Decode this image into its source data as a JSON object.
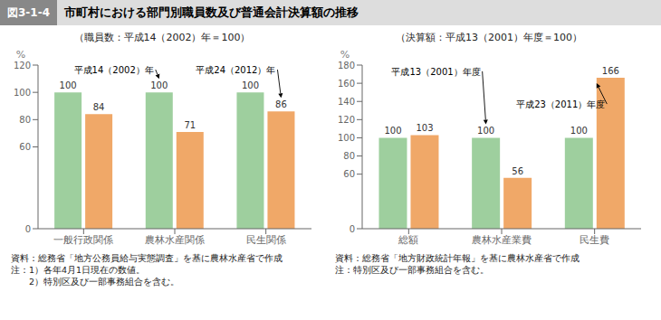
{
  "title_box": "図3-1-4",
  "title": "市町村における部門別職員数及び普通会計決算額の推移",
  "chart_data": [
    {
      "type": "bar",
      "subtitle": "（職員数：平成14（2002）年＝100）",
      "categories": [
        "一般行政関係",
        "農林水産関係",
        "民生関係"
      ],
      "series": [
        {
          "color": "#9ecf9e",
          "values": [
            100,
            100,
            100
          ],
          "annotation": {
            "text": "平成14（2002）年",
            "category": "農林水産関係"
          }
        },
        {
          "color": "#f0a868",
          "values": [
            84,
            71,
            86
          ],
          "annotation": {
            "text": "平成24（2012）年",
            "category": "民生関係"
          }
        }
      ],
      "ylabel": "%",
      "ylim": [
        0,
        120
      ],
      "yticks": [
        0,
        60,
        80,
        100,
        120
      ],
      "grid": false,
      "data_labels": true,
      "notes": [
        "資料：総務省「地方公務員給与実態調査」を基に農林水産省で作成",
        "注：1）各年4月1日現在の数値。",
        "　　2）特別区及び一部事務組合を含む。"
      ]
    },
    {
      "type": "bar",
      "subtitle": "（決算額：平成13（2001）年度＝100）",
      "categories": [
        "総額",
        "農林水産業費",
        "民生費"
      ],
      "series": [
        {
          "color": "#9ecf9e",
          "values": [
            100,
            100,
            100
          ],
          "annotation": {
            "text": "平成13（2001）年度",
            "category": "農林水産業費"
          }
        },
        {
          "color": "#f0a868",
          "values": [
            103,
            56,
            166
          ],
          "annotation": {
            "text": "平成23（2011）年度",
            "category": "民生費"
          }
        }
      ],
      "ylabel": "%",
      "ylim": [
        0,
        180
      ],
      "yticks": [
        0,
        60,
        80,
        100,
        120,
        140,
        160,
        180
      ],
      "grid": false,
      "data_labels": true,
      "notes": [
        "資料：総務省「地方財政統計年報」を基に農林水産省で作成",
        "注：特別区及び一部事務組合を含む。"
      ]
    }
  ]
}
